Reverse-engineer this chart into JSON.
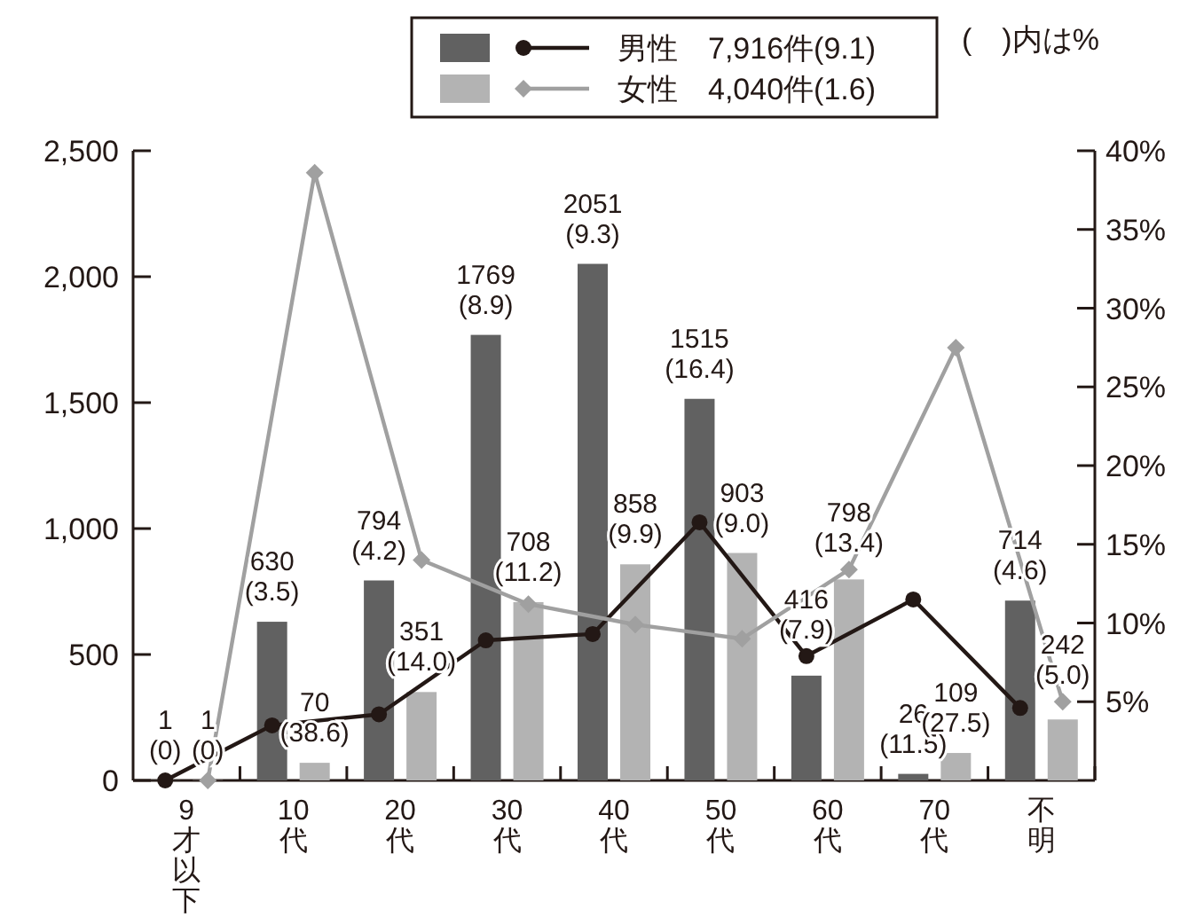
{
  "chart_data": {
    "type": "bar",
    "categories": [
      "9才以下",
      "10代",
      "20代",
      "30代",
      "40代",
      "50代",
      "60代",
      "70代",
      "不明"
    ],
    "series": [
      {
        "color": "#616161",
        "values": [
          1,
          630,
          794,
          1769,
          2051,
          1515,
          416,
          26,
          714
        ],
        "value_labels": [
          "1\n(0)",
          "630\n(3.5)",
          "794\n(4.2)",
          "1769\n(8.9)",
          "2051\n(9.3)",
          "1515\n(16.4)",
          "416\n(7.9)",
          "26\n(11.5)",
          "714\n(4.6)"
        ]
      },
      {
        "color": "#b3b3b3",
        "values": [
          1,
          70,
          351,
          708,
          858,
          903,
          798,
          109,
          242
        ],
        "value_labels": [
          "1\n(0)",
          "70\n(38.6)",
          "351\n(14.0)",
          "708\n(11.2)",
          "858\n(9.9)",
          "903\n(9.0)",
          "798\n(13.4)",
          "109\n(27.5)",
          "242\n(5.0)"
        ]
      },
      {
        "name": "男性　7,916件(9.1)",
        "type": "line",
        "axis": "y2",
        "color": "#231815",
        "marker": "circle",
        "values": [
          0,
          3.5,
          4.2,
          8.9,
          9.3,
          16.4,
          7.9,
          11.5,
          4.6
        ]
      },
      {
        "name": "女性　4,040件(1.6)",
        "type": "line",
        "axis": "y2",
        "color": "#a0a0a0",
        "marker": "diamond",
        "values": [
          0,
          38.6,
          14.0,
          11.2,
          9.9,
          9.0,
          13.4,
          27.5,
          5.0
        ]
      }
    ],
    "ylim": [
      0,
      2500
    ],
    "yticks": [
      {
        "value": 0,
        "label": "0"
      },
      {
        "value": 500,
        "label": "500"
      },
      {
        "value": 1000,
        "label": "1,000"
      },
      {
        "value": 1500,
        "label": "1,500"
      },
      {
        "value": 2000,
        "label": "2,000"
      },
      {
        "value": 2500,
        "label": "2,500"
      }
    ],
    "y2lim": [
      0,
      40
    ],
    "y2ticks": [
      {
        "value": 5,
        "label": "5%"
      },
      {
        "value": 10,
        "label": "10%"
      },
      {
        "value": 15,
        "label": "15%"
      },
      {
        "value": 20,
        "label": "20%"
      },
      {
        "value": 25,
        "label": "25%"
      },
      {
        "value": 30,
        "label": "30%"
      },
      {
        "value": 35,
        "label": "35%"
      },
      {
        "value": 40,
        "label": "40%"
      }
    ],
    "annotations": [
      "(　)内は%"
    ],
    "legend": "top",
    "grid": false
  }
}
